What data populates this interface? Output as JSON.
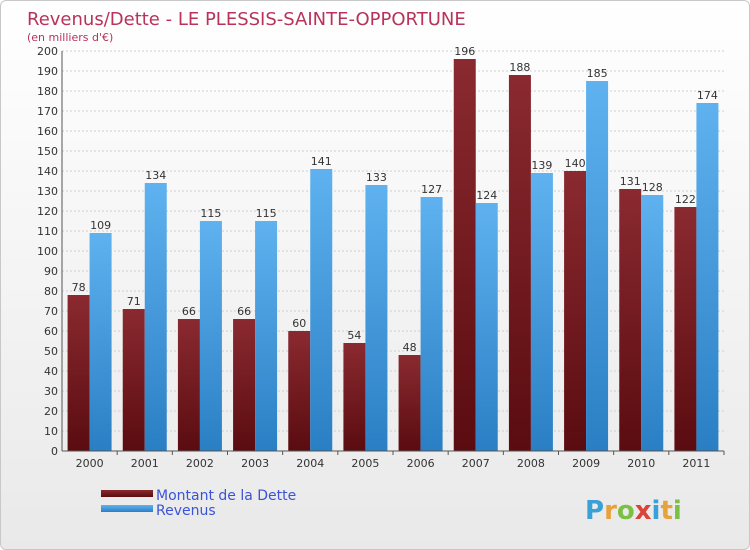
{
  "chart_data": {
    "type": "bar",
    "title": "Revenus/Dette - LE PLESSIS-SAINTE-OPPORTUNE",
    "subtitle": "(en milliers d'€)",
    "categories": [
      "2000",
      "2001",
      "2002",
      "2003",
      "2004",
      "2005",
      "2006",
      "2007",
      "2008",
      "2009",
      "2010",
      "2011"
    ],
    "series": [
      {
        "name": "Montant de la Dette",
        "color": "#7a1f24",
        "values": [
          78,
          71,
          66,
          66,
          60,
          54,
          48,
          196,
          188,
          140,
          131,
          122
        ]
      },
      {
        "name": "Revenus",
        "color": "#4aa3e6",
        "values": [
          109,
          134,
          115,
          115,
          141,
          133,
          127,
          124,
          139,
          185,
          128,
          174
        ]
      }
    ],
    "ylim": [
      0,
      200
    ],
    "ytick_step": 10,
    "grid": true,
    "legend_position": "bottom-left"
  },
  "logo": {
    "letters": [
      "P",
      "r",
      "o",
      "x",
      "i",
      "t",
      "i"
    ],
    "colors": [
      "#3aa0d8",
      "#e8a23a",
      "#7cc043",
      "#d8433a",
      "#3aa0d8",
      "#e8a23a",
      "#7cc043"
    ]
  }
}
